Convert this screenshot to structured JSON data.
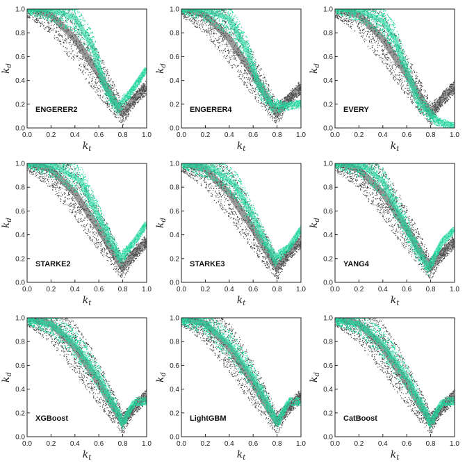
{
  "figure": {
    "colors": {
      "measured": "#474747",
      "modeled": "#1fd69c",
      "axis": "#222222"
    }
  },
  "chart_data": [
    {
      "type": "scatter",
      "title": "ENGERER2",
      "xlabel": "k_t",
      "ylabel": "k_d",
      "xlim": [
        0,
        1
      ],
      "ylim": [
        0,
        1
      ],
      "xticks": [
        "0.0",
        "0.2",
        "0.4",
        "0.6",
        "0.8",
        "1.0"
      ],
      "yticks": [
        "0.0",
        "0.2",
        "0.4",
        "0.6",
        "0.8",
        "1.0"
      ],
      "series": [
        {
          "values": [
            [
              0.05,
              0.99
            ],
            [
              0.2,
              0.95
            ],
            [
              0.4,
              0.75
            ],
            [
              0.6,
              0.45
            ],
            [
              0.75,
              0.2
            ],
            [
              0.8,
              0.12
            ],
            [
              0.9,
              0.25
            ],
            [
              1.0,
              0.35
            ]
          ]
        },
        {
          "values": [
            [
              0.0,
              1.0
            ],
            [
              0.2,
              0.99
            ],
            [
              0.4,
              0.93
            ],
            [
              0.55,
              0.68
            ],
            [
              0.65,
              0.35
            ],
            [
              0.75,
              0.17
            ],
            [
              0.85,
              0.28
            ],
            [
              1.0,
              0.5
            ]
          ]
        }
      ]
    },
    {
      "type": "scatter",
      "title": "ENGERER4",
      "xlabel": "k_t",
      "ylabel": "k_d",
      "xlim": [
        0,
        1
      ],
      "ylim": [
        0,
        1
      ],
      "xticks": [
        "0.0",
        "0.2",
        "0.4",
        "0.6",
        "0.8",
        "1.0"
      ],
      "yticks": [
        "0.0",
        "0.2",
        "0.4",
        "0.6",
        "0.8",
        "1.0"
      ],
      "series": [
        {
          "values": [
            [
              0.05,
              0.99
            ],
            [
              0.2,
              0.95
            ],
            [
              0.4,
              0.75
            ],
            [
              0.6,
              0.45
            ],
            [
              0.75,
              0.2
            ],
            [
              0.8,
              0.12
            ],
            [
              0.9,
              0.25
            ],
            [
              1.0,
              0.35
            ]
          ]
        },
        {
          "values": [
            [
              0.0,
              1.0
            ],
            [
              0.2,
              0.99
            ],
            [
              0.4,
              0.92
            ],
            [
              0.55,
              0.65
            ],
            [
              0.65,
              0.35
            ],
            [
              0.75,
              0.2
            ],
            [
              0.85,
              0.18
            ],
            [
              1.0,
              0.21
            ]
          ]
        }
      ]
    },
    {
      "type": "scatter",
      "title": "EVERY",
      "xlabel": "k_t",
      "ylabel": "k_d",
      "xlim": [
        0,
        1
      ],
      "ylim": [
        0,
        1
      ],
      "xticks": [
        "0.0",
        "0.2",
        "0.4",
        "0.6",
        "0.8",
        "1.0"
      ],
      "yticks": [
        "0.0",
        "0.2",
        "0.4",
        "0.6",
        "0.8",
        "1.0"
      ],
      "series": [
        {
          "values": [
            [
              0.05,
              0.99
            ],
            [
              0.2,
              0.95
            ],
            [
              0.4,
              0.75
            ],
            [
              0.6,
              0.45
            ],
            [
              0.75,
              0.2
            ],
            [
              0.8,
              0.12
            ],
            [
              0.9,
              0.25
            ],
            [
              1.0,
              0.35
            ]
          ]
        },
        {
          "values": [
            [
              0.0,
              1.0
            ],
            [
              0.2,
              0.99
            ],
            [
              0.4,
              0.9
            ],
            [
              0.5,
              0.75
            ],
            [
              0.6,
              0.48
            ],
            [
              0.7,
              0.22
            ],
            [
              0.85,
              0.06
            ],
            [
              1.0,
              0.01
            ]
          ]
        }
      ]
    },
    {
      "type": "scatter",
      "title": "STARKE2",
      "xlabel": "k_t",
      "ylabel": "k_d",
      "xlim": [
        0,
        1
      ],
      "ylim": [
        0,
        1
      ],
      "xticks": [
        "0.0",
        "0.2",
        "0.4",
        "0.6",
        "0.8",
        "1.0"
      ],
      "yticks": [
        "0.0",
        "0.2",
        "0.4",
        "0.6",
        "0.8",
        "1.0"
      ],
      "series": [
        {
          "values": [
            [
              0.05,
              0.99
            ],
            [
              0.2,
              0.95
            ],
            [
              0.4,
              0.75
            ],
            [
              0.6,
              0.45
            ],
            [
              0.75,
              0.2
            ],
            [
              0.8,
              0.12
            ],
            [
              0.9,
              0.25
            ],
            [
              1.0,
              0.35
            ]
          ]
        },
        {
          "values": [
            [
              0.0,
              1.0
            ],
            [
              0.25,
              0.97
            ],
            [
              0.45,
              0.85
            ],
            [
              0.6,
              0.55
            ],
            [
              0.7,
              0.35
            ],
            [
              0.78,
              0.2
            ],
            [
              0.9,
              0.35
            ],
            [
              1.0,
              0.5
            ]
          ]
        }
      ]
    },
    {
      "type": "scatter",
      "title": "STARKE3",
      "xlabel": "k_t",
      "ylabel": "k_d",
      "xlim": [
        0,
        1
      ],
      "ylim": [
        0,
        1
      ],
      "xticks": [
        "0.0",
        "0.2",
        "0.4",
        "0.6",
        "0.8",
        "1.0"
      ],
      "yticks": [
        "0.0",
        "0.2",
        "0.4",
        "0.6",
        "0.8",
        "1.0"
      ],
      "series": [
        {
          "values": [
            [
              0.05,
              0.99
            ],
            [
              0.2,
              0.95
            ],
            [
              0.4,
              0.75
            ],
            [
              0.6,
              0.45
            ],
            [
              0.75,
              0.2
            ],
            [
              0.8,
              0.12
            ],
            [
              0.9,
              0.25
            ],
            [
              1.0,
              0.35
            ]
          ]
        },
        {
          "values": [
            [
              0.0,
              1.0
            ],
            [
              0.25,
              0.96
            ],
            [
              0.45,
              0.82
            ],
            [
              0.6,
              0.55
            ],
            [
              0.7,
              0.35
            ],
            [
              0.78,
              0.2
            ],
            [
              0.9,
              0.3
            ],
            [
              1.0,
              0.45
            ]
          ]
        }
      ]
    },
    {
      "type": "scatter",
      "title": "YANG4",
      "xlabel": "k_t",
      "ylabel": "k_d",
      "xlim": [
        0,
        1
      ],
      "ylim": [
        0,
        1
      ],
      "xticks": [
        "0.0",
        "0.2",
        "0.4",
        "0.6",
        "0.8",
        "1.0"
      ],
      "yticks": [
        "0.0",
        "0.2",
        "0.4",
        "0.6",
        "0.8",
        "1.0"
      ],
      "series": [
        {
          "values": [
            [
              0.05,
              0.99
            ],
            [
              0.2,
              0.95
            ],
            [
              0.4,
              0.75
            ],
            [
              0.6,
              0.45
            ],
            [
              0.75,
              0.2
            ],
            [
              0.8,
              0.12
            ],
            [
              0.9,
              0.25
            ],
            [
              1.0,
              0.35
            ]
          ]
        },
        {
          "values": [
            [
              0.0,
              1.0
            ],
            [
              0.25,
              0.97
            ],
            [
              0.4,
              0.85
            ],
            [
              0.55,
              0.55
            ],
            [
              0.7,
              0.25
            ],
            [
              0.78,
              0.12
            ],
            [
              0.9,
              0.35
            ],
            [
              1.0,
              0.45
            ]
          ]
        }
      ]
    },
    {
      "type": "scatter",
      "title": "XGBoost",
      "xlabel": "k_t",
      "ylabel": "k_d",
      "xlim": [
        0,
        1
      ],
      "ylim": [
        0,
        1
      ],
      "xticks": [
        "0.0",
        "0.2",
        "0.4",
        "0.6",
        "0.8",
        "1.0"
      ],
      "yticks": [
        "0.0",
        "0.2",
        "0.4",
        "0.6",
        "0.8",
        "1.0"
      ],
      "series": [
        {
          "values": [
            [
              0.05,
              0.99
            ],
            [
              0.2,
              0.95
            ],
            [
              0.4,
              0.75
            ],
            [
              0.6,
              0.45
            ],
            [
              0.75,
              0.2
            ],
            [
              0.8,
              0.12
            ],
            [
              0.9,
              0.25
            ],
            [
              1.0,
              0.35
            ]
          ]
        },
        {
          "values": [
            [
              0.0,
              0.98
            ],
            [
              0.2,
              0.95
            ],
            [
              0.4,
              0.78
            ],
            [
              0.6,
              0.5
            ],
            [
              0.75,
              0.22
            ],
            [
              0.8,
              0.12
            ],
            [
              0.9,
              0.3
            ]
          ]
        }
      ]
    },
    {
      "type": "scatter",
      "title": "LightGBM",
      "xlabel": "k_t",
      "ylabel": "k_d",
      "xlim": [
        0,
        1
      ],
      "ylim": [
        0,
        1
      ],
      "xticks": [
        "0.0",
        "0.2",
        "0.4",
        "0.6",
        "0.8",
        "1.0"
      ],
      "yticks": [
        "0.0",
        "0.2",
        "0.4",
        "0.6",
        "0.8",
        "1.0"
      ],
      "series": [
        {
          "values": [
            [
              0.05,
              0.99
            ],
            [
              0.2,
              0.95
            ],
            [
              0.4,
              0.75
            ],
            [
              0.6,
              0.45
            ],
            [
              0.75,
              0.2
            ],
            [
              0.8,
              0.12
            ],
            [
              0.9,
              0.25
            ],
            [
              1.0,
              0.35
            ]
          ]
        },
        {
          "values": [
            [
              0.0,
              0.98
            ],
            [
              0.2,
              0.95
            ],
            [
              0.4,
              0.78
            ],
            [
              0.6,
              0.5
            ],
            [
              0.75,
              0.22
            ],
            [
              0.8,
              0.12
            ],
            [
              0.9,
              0.3
            ]
          ]
        }
      ]
    },
    {
      "type": "scatter",
      "title": "CatBoost",
      "xlabel": "k_t",
      "ylabel": "k_d",
      "xlim": [
        0,
        1
      ],
      "ylim": [
        0,
        1
      ],
      "xticks": [
        "0.0",
        "0.2",
        "0.4",
        "0.6",
        "0.8",
        "1.0"
      ],
      "yticks": [
        "0.0",
        "0.2",
        "0.4",
        "0.6",
        "0.8",
        "1.0"
      ],
      "series": [
        {
          "values": [
            [
              0.05,
              0.99
            ],
            [
              0.2,
              0.95
            ],
            [
              0.4,
              0.75
            ],
            [
              0.6,
              0.45
            ],
            [
              0.75,
              0.2
            ],
            [
              0.8,
              0.12
            ],
            [
              0.9,
              0.25
            ],
            [
              1.0,
              0.35
            ]
          ]
        },
        {
          "values": [
            [
              0.0,
              0.98
            ],
            [
              0.2,
              0.95
            ],
            [
              0.4,
              0.78
            ],
            [
              0.6,
              0.5
            ],
            [
              0.75,
              0.22
            ],
            [
              0.8,
              0.12
            ],
            [
              0.9,
              0.3
            ]
          ]
        }
      ]
    }
  ]
}
